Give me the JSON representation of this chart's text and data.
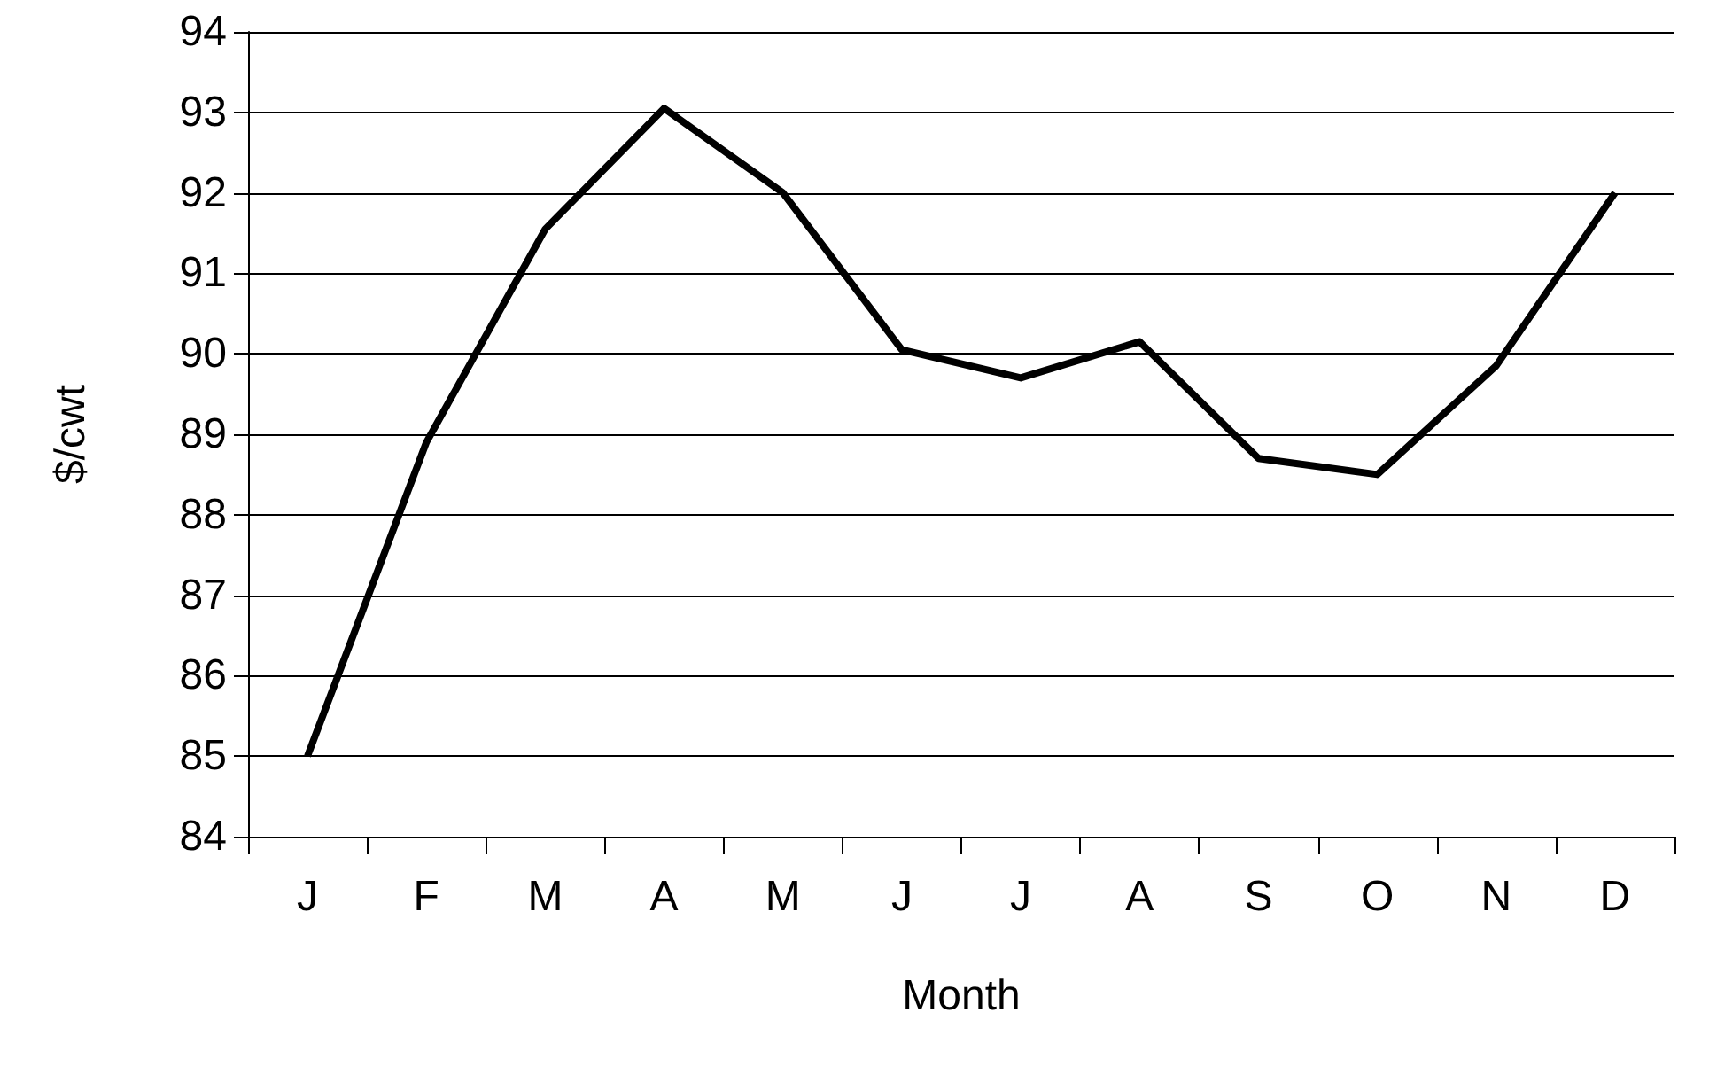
{
  "chart_data": {
    "type": "line",
    "xlabel": "Month",
    "ylabel": "$/cwt",
    "categories": [
      "J",
      "F",
      "M",
      "A",
      "M",
      "J",
      "J",
      "A",
      "S",
      "O",
      "N",
      "D"
    ],
    "series": [
      {
        "color": "#000000",
        "values": [
          85.0,
          88.9,
          91.55,
          93.05,
          92.0,
          90.05,
          89.7,
          90.15,
          88.7,
          88.5,
          89.85,
          92.0
        ]
      }
    ],
    "ylim": [
      84,
      94
    ],
    "yticks": [
      84,
      85,
      86,
      87,
      88,
      89,
      90,
      91,
      92,
      93,
      94
    ],
    "grid": "y",
    "marker": "none",
    "line_style": "solid"
  }
}
